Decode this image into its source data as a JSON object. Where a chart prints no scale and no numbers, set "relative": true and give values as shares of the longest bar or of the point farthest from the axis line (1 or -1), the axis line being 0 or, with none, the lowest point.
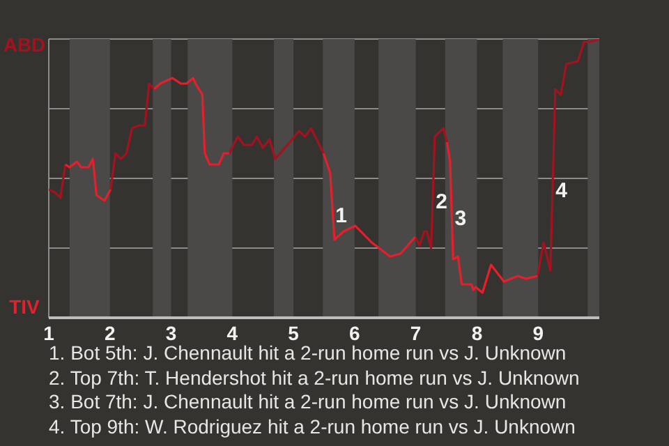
{
  "chart_data": {
    "type": "line",
    "relative": true,
    "grid": "y",
    "x": [
      1.0,
      1.1,
      1.19,
      1.27,
      1.34,
      1.46,
      1.53,
      1.65,
      1.72,
      1.78,
      1.91,
      2.01,
      2.09,
      2.18,
      2.27,
      2.36,
      2.48,
      2.57,
      2.64,
      2.72,
      2.82,
      3.02,
      3.16,
      3.25,
      3.36,
      3.4,
      3.51,
      3.55,
      3.63,
      3.78,
      3.86,
      3.95,
      4.09,
      4.19,
      4.32,
      4.4,
      4.5,
      4.61,
      4.7,
      4.94,
      5.09,
      5.19,
      5.29,
      5.49,
      5.6,
      5.67,
      5.82,
      6.01,
      6.28,
      6.58,
      6.75,
      6.99,
      7.06,
      7.14,
      7.18,
      7.25,
      7.31,
      7.45,
      7.51,
      7.56,
      7.61,
      7.69,
      7.75,
      7.91,
      7.94,
      7.98,
      8.09,
      8.23,
      8.44,
      8.67,
      8.8,
      8.99,
      9.09,
      9.2,
      9.28,
      9.37,
      9.46,
      9.65,
      9.75,
      9.84,
      10
    ],
    "xlim": [
      1,
      10
    ],
    "xticks": [
      1,
      2,
      3,
      4,
      5,
      6,
      7,
      8,
      9
    ],
    "series": [
      {
        "name": "ABD",
        "color": "#a3121e",
        "values": [
          0.46,
          0.45,
          0.43,
          0.55,
          null,
          null,
          null,
          null,
          null,
          null,
          null,
          0.46,
          0.59,
          0.57,
          0.59,
          0.68,
          0.69,
          0.69,
          0.84,
          0.82,
          null,
          null,
          null,
          null,
          null,
          null,
          null,
          null,
          null,
          null,
          null,
          0.59,
          0.65,
          0.62,
          0.62,
          0.65,
          0.61,
          0.64,
          0.57,
          0.63,
          0.67,
          0.65,
          0.68,
          0.59,
          null,
          null,
          null,
          0.33,
          0.27,
          null,
          null,
          0.29,
          0.26,
          0.31,
          0.31,
          0.25,
          0.65,
          0.68,
          0.63,
          null,
          null,
          null,
          null,
          null,
          null,
          null,
          0.09,
          0.19,
          null,
          null,
          null,
          0.15,
          0.27,
          0.17,
          0.82,
          0.8,
          0.91,
          0.92,
          0.99,
          0.99,
          1
        ]
      },
      {
        "name": "TIV",
        "color": "#e3202c",
        "values": [
          null,
          null,
          null,
          0.55,
          0.54,
          0.56,
          0.54,
          0.54,
          0.57,
          0.44,
          0.42,
          0.46,
          null,
          null,
          null,
          null,
          null,
          null,
          null,
          0.82,
          0.84,
          0.86,
          0.84,
          0.84,
          0.86,
          0.84,
          0.8,
          0.59,
          0.55,
          0.55,
          0.59,
          0.59,
          null,
          null,
          null,
          null,
          null,
          null,
          null,
          null,
          null,
          null,
          null,
          0.59,
          0.52,
          0.28,
          0.31,
          0.33,
          0.27,
          0.22,
          0.23,
          0.29,
          null,
          null,
          null,
          null,
          null,
          null,
          0.63,
          0.56,
          0.21,
          0.22,
          0.12,
          0.12,
          0.1,
          0.11,
          0.09,
          0.19,
          0.13,
          0.15,
          0.14,
          0.15,
          null,
          null,
          null,
          null,
          null,
          null,
          null,
          null,
          null
        ]
      }
    ],
    "bands": [
      {
        "axis": "x",
        "from": 1.34,
        "to": 2,
        "color": "#4a4948"
      },
      {
        "axis": "x",
        "from": 2.7,
        "to": 3,
        "color": "#4a4948"
      },
      {
        "axis": "x",
        "from": 3.27,
        "to": 4,
        "color": "#4a4948"
      },
      {
        "axis": "x",
        "from": 4.68,
        "to": 5,
        "color": "#4a4948"
      },
      {
        "axis": "x",
        "from": 5.48,
        "to": 6,
        "color": "#4a4948"
      },
      {
        "axis": "x",
        "from": 6.39,
        "to": 7,
        "color": "#4a4948"
      },
      {
        "axis": "x",
        "from": 7.48,
        "to": 8,
        "color": "#4a4948"
      },
      {
        "axis": "x",
        "from": 8.42,
        "to": 9,
        "color": "#4a4948"
      },
      {
        "axis": "x",
        "from": 9.81,
        "to": 10,
        "color": "#4a4948"
      }
    ],
    "annotations": [
      {
        "text": "1",
        "x": 5.64,
        "y": 0.37
      },
      {
        "text": "2",
        "x": 7.28,
        "y": 0.42
      },
      {
        "text": "3",
        "x": 7.59,
        "y": 0.36
      },
      {
        "text": "4",
        "x": 9.24,
        "y": 0.46
      },
      "1. Bot 5th: J. Chennault hit a 2-run home run vs J. Unknown",
      "2. Top 7th: T. Hendershot hit a 2-run home run vs J. Unknown",
      "3. Bot 7th: J. Chennault hit a 2-run home run vs J. Unknown",
      "4. Top 9th: W. Rodriguez hit a 2-run home run vs J. Unknown"
    ]
  }
}
